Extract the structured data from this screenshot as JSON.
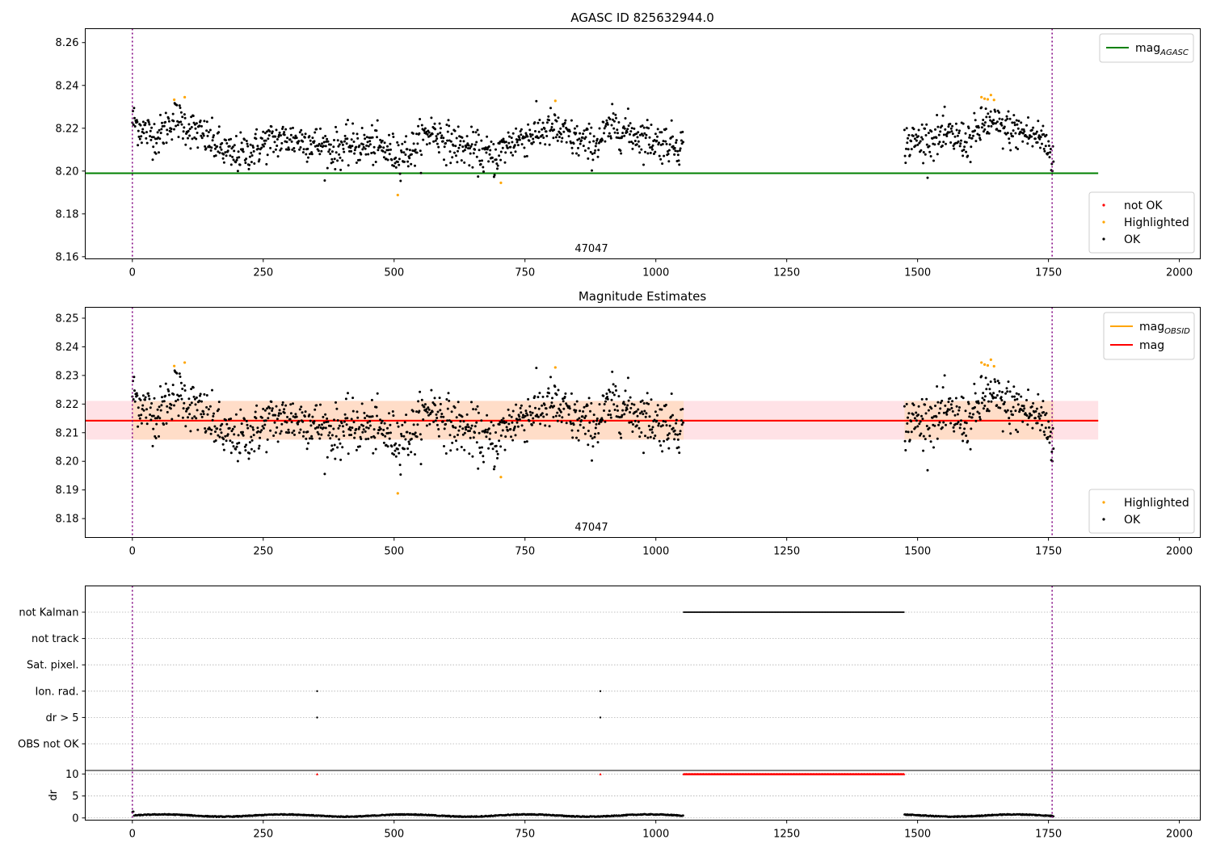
{
  "colors": {
    "ok": "#000000",
    "highlighted": "#ffa500",
    "not_ok": "#ff0000",
    "mag_agasc": "#008000",
    "mag_obsid": "#ffa500",
    "mag": "#ff0000",
    "band_inner": "#ffddc8",
    "band_outer": "#ffe2e6",
    "obs_boundary": "#800080",
    "grid": "#b0b0b0"
  },
  "chart_data": [
    {
      "type": "scatter",
      "title": "AGASC ID 825632944.0",
      "xlim": [
        -90,
        2040
      ],
      "ylim": [
        8.159,
        8.2665
      ],
      "xticks": [
        "0",
        "250",
        "500",
        "750",
        "1000",
        "1250",
        "1500",
        "1750",
        "2000"
      ],
      "xtick_values": [
        0,
        250,
        500,
        750,
        1000,
        1250,
        1500,
        1750,
        2000
      ],
      "yticks": [
        "8.16",
        "8.18",
        "8.20",
        "8.22",
        "8.24",
        "8.26"
      ],
      "ytick_values": [
        8.16,
        8.18,
        8.2,
        8.22,
        8.24,
        8.26
      ],
      "obsid_label": "47047",
      "obsid_label_x": 880,
      "obs_boundaries": [
        0,
        1757
      ],
      "lines": [
        {
          "name": "mag",
          "sub": "AGASC",
          "y": 8.199,
          "x_range": [
            -90,
            1845
          ],
          "color": "#008000"
        }
      ],
      "legend_lines": [
        {
          "name": "mag",
          "sub": "AGASC",
          "color": "#008000"
        }
      ],
      "legend_lines_position": "upper right",
      "legend_points": [
        {
          "name": "not OK",
          "color": "#ff0000"
        },
        {
          "name": "Highlighted",
          "color": "#ffa500"
        },
        {
          "name": "OK",
          "color": "#000000"
        }
      ],
      "legend_points_position": "lower right",
      "highlighted": [
        [
          80,
          8.2333
        ],
        [
          100,
          8.2345
        ],
        [
          507,
          8.1888
        ],
        [
          704,
          8.1945
        ],
        [
          808,
          8.2328
        ],
        [
          1622,
          8.2345
        ],
        [
          1628,
          8.2338
        ],
        [
          1634,
          8.2335
        ],
        [
          1640,
          8.2355
        ],
        [
          1646,
          8.2332
        ]
      ],
      "series_segments": [
        {
          "x": [
            0,
            1053
          ],
          "levels": [
            [
              0,
              8.224
            ],
            [
              20,
              8.219
            ],
            [
              50,
              8.216
            ],
            [
              80,
              8.225
            ],
            [
              110,
              8.22
            ],
            [
              150,
              8.214
            ],
            [
              190,
              8.207
            ],
            [
              230,
              8.21
            ],
            [
              260,
              8.214
            ],
            [
              300,
              8.215
            ],
            [
              340,
              8.214
            ],
            [
              380,
              8.21
            ],
            [
              420,
              8.212
            ],
            [
              460,
              8.212
            ],
            [
              500,
              8.208
            ],
            [
              530,
              8.209
            ],
            [
              570,
              8.219
            ],
            [
              610,
              8.213
            ],
            [
              650,
              8.21
            ],
            [
              690,
              8.206
            ],
            [
              720,
              8.213
            ],
            [
              760,
              8.217
            ],
            [
              800,
              8.22
            ],
            [
              840,
              8.215
            ],
            [
              880,
              8.212
            ],
            [
              920,
              8.221
            ],
            [
              960,
              8.217
            ],
            [
              1000,
              8.214
            ],
            [
              1053,
              8.212
            ]
          ],
          "spread": 0.0045
        },
        {
          "x": [
            1475,
            1760
          ],
          "levels": [
            [
              1475,
              8.213
            ],
            [
              1520,
              8.215
            ],
            [
              1560,
              8.216
            ],
            [
              1600,
              8.214
            ],
            [
              1630,
              8.223
            ],
            [
              1660,
              8.22
            ],
            [
              1700,
              8.218
            ],
            [
              1740,
              8.215
            ],
            [
              1760,
              8.206
            ]
          ],
          "spread": 0.0045
        }
      ]
    },
    {
      "type": "scatter",
      "title": "Magnitude Estimates",
      "xlim": [
        -90,
        2040
      ],
      "ylim": [
        8.1734,
        8.2538
      ],
      "xticks": [
        "0",
        "250",
        "500",
        "750",
        "1000",
        "1250",
        "1500",
        "1750",
        "2000"
      ],
      "xtick_values": [
        0,
        250,
        500,
        750,
        1000,
        1250,
        1500,
        1750,
        2000
      ],
      "yticks": [
        "8.18",
        "8.19",
        "8.20",
        "8.21",
        "8.22",
        "8.23",
        "8.24",
        "8.25"
      ],
      "ytick_values": [
        8.18,
        8.19,
        8.2,
        8.21,
        8.22,
        8.23,
        8.24,
        8.25
      ],
      "obsid_label": "47047",
      "obsid_label_x": 880,
      "obs_boundaries": [
        0,
        1757
      ],
      "band_outer": [
        8.2076,
        8.2211
      ],
      "band_inner": [
        8.2076,
        8.2211
      ],
      "band_x_range": [
        -90,
        1845
      ],
      "lines": [
        {
          "name": "mag",
          "sub": "OBSID",
          "y": 8.2142,
          "x_range": [
            -90,
            1845
          ],
          "color": "#ffa500"
        },
        {
          "name": "mag",
          "sub": "",
          "y": 8.2142,
          "x_range": [
            -90,
            1845
          ],
          "color": "#ff0000"
        }
      ],
      "legend_lines": [
        {
          "name": "mag",
          "sub": "OBSID",
          "color": "#ffa500"
        },
        {
          "name": "mag",
          "sub": "",
          "color": "#ff0000"
        }
      ],
      "legend_lines_position": "upper right",
      "legend_points": [
        {
          "name": "Highlighted",
          "color": "#ffa500"
        },
        {
          "name": "OK",
          "color": "#000000"
        }
      ],
      "legend_points_position": "lower right",
      "highlighted": [
        [
          80,
          8.2333
        ],
        [
          100,
          8.2345
        ],
        [
          507,
          8.1888
        ],
        [
          704,
          8.1945
        ],
        [
          808,
          8.2328
        ],
        [
          1622,
          8.2345
        ],
        [
          1628,
          8.2338
        ],
        [
          1634,
          8.2335
        ],
        [
          1640,
          8.2355
        ],
        [
          1646,
          8.2332
        ]
      ]
    },
    {
      "type": "scatter",
      "xlim": [
        -90,
        2040
      ],
      "xticks": [
        "0",
        "250",
        "500",
        "750",
        "1000",
        "1250",
        "1500",
        "1750",
        "2000"
      ],
      "xtick_values": [
        0,
        250,
        500,
        750,
        1000,
        1250,
        1500,
        1750,
        2000
      ],
      "obs_boundaries": [
        0,
        1757
      ],
      "flag_rows": [
        "not Kalman",
        "not track",
        "Sat. pixel.",
        "Ion. rad.",
        "dr > 5",
        "OBS not OK"
      ],
      "flag_events": {
        "not Kalman": [
          [
            1053,
            1475
          ]
        ],
        "Ion. rad.": [
          [
            353,
            353
          ],
          [
            894,
            894
          ]
        ],
        "dr > 5": [
          [
            353,
            353
          ],
          [
            894,
            894
          ]
        ]
      },
      "dr": {
        "ylabel": "dr",
        "yticks": [
          "0",
          "5",
          "10"
        ],
        "ytick_values": [
          0,
          5,
          10
        ],
        "ylim": [
          -0.5,
          10.8
        ],
        "clip_value": 10,
        "clipped_x": [
          [
            353,
            353
          ],
          [
            894,
            894
          ],
          [
            1053,
            1475
          ]
        ],
        "segments": [
          [
            0,
            1053
          ],
          [
            1475,
            1760
          ]
        ]
      }
    }
  ]
}
